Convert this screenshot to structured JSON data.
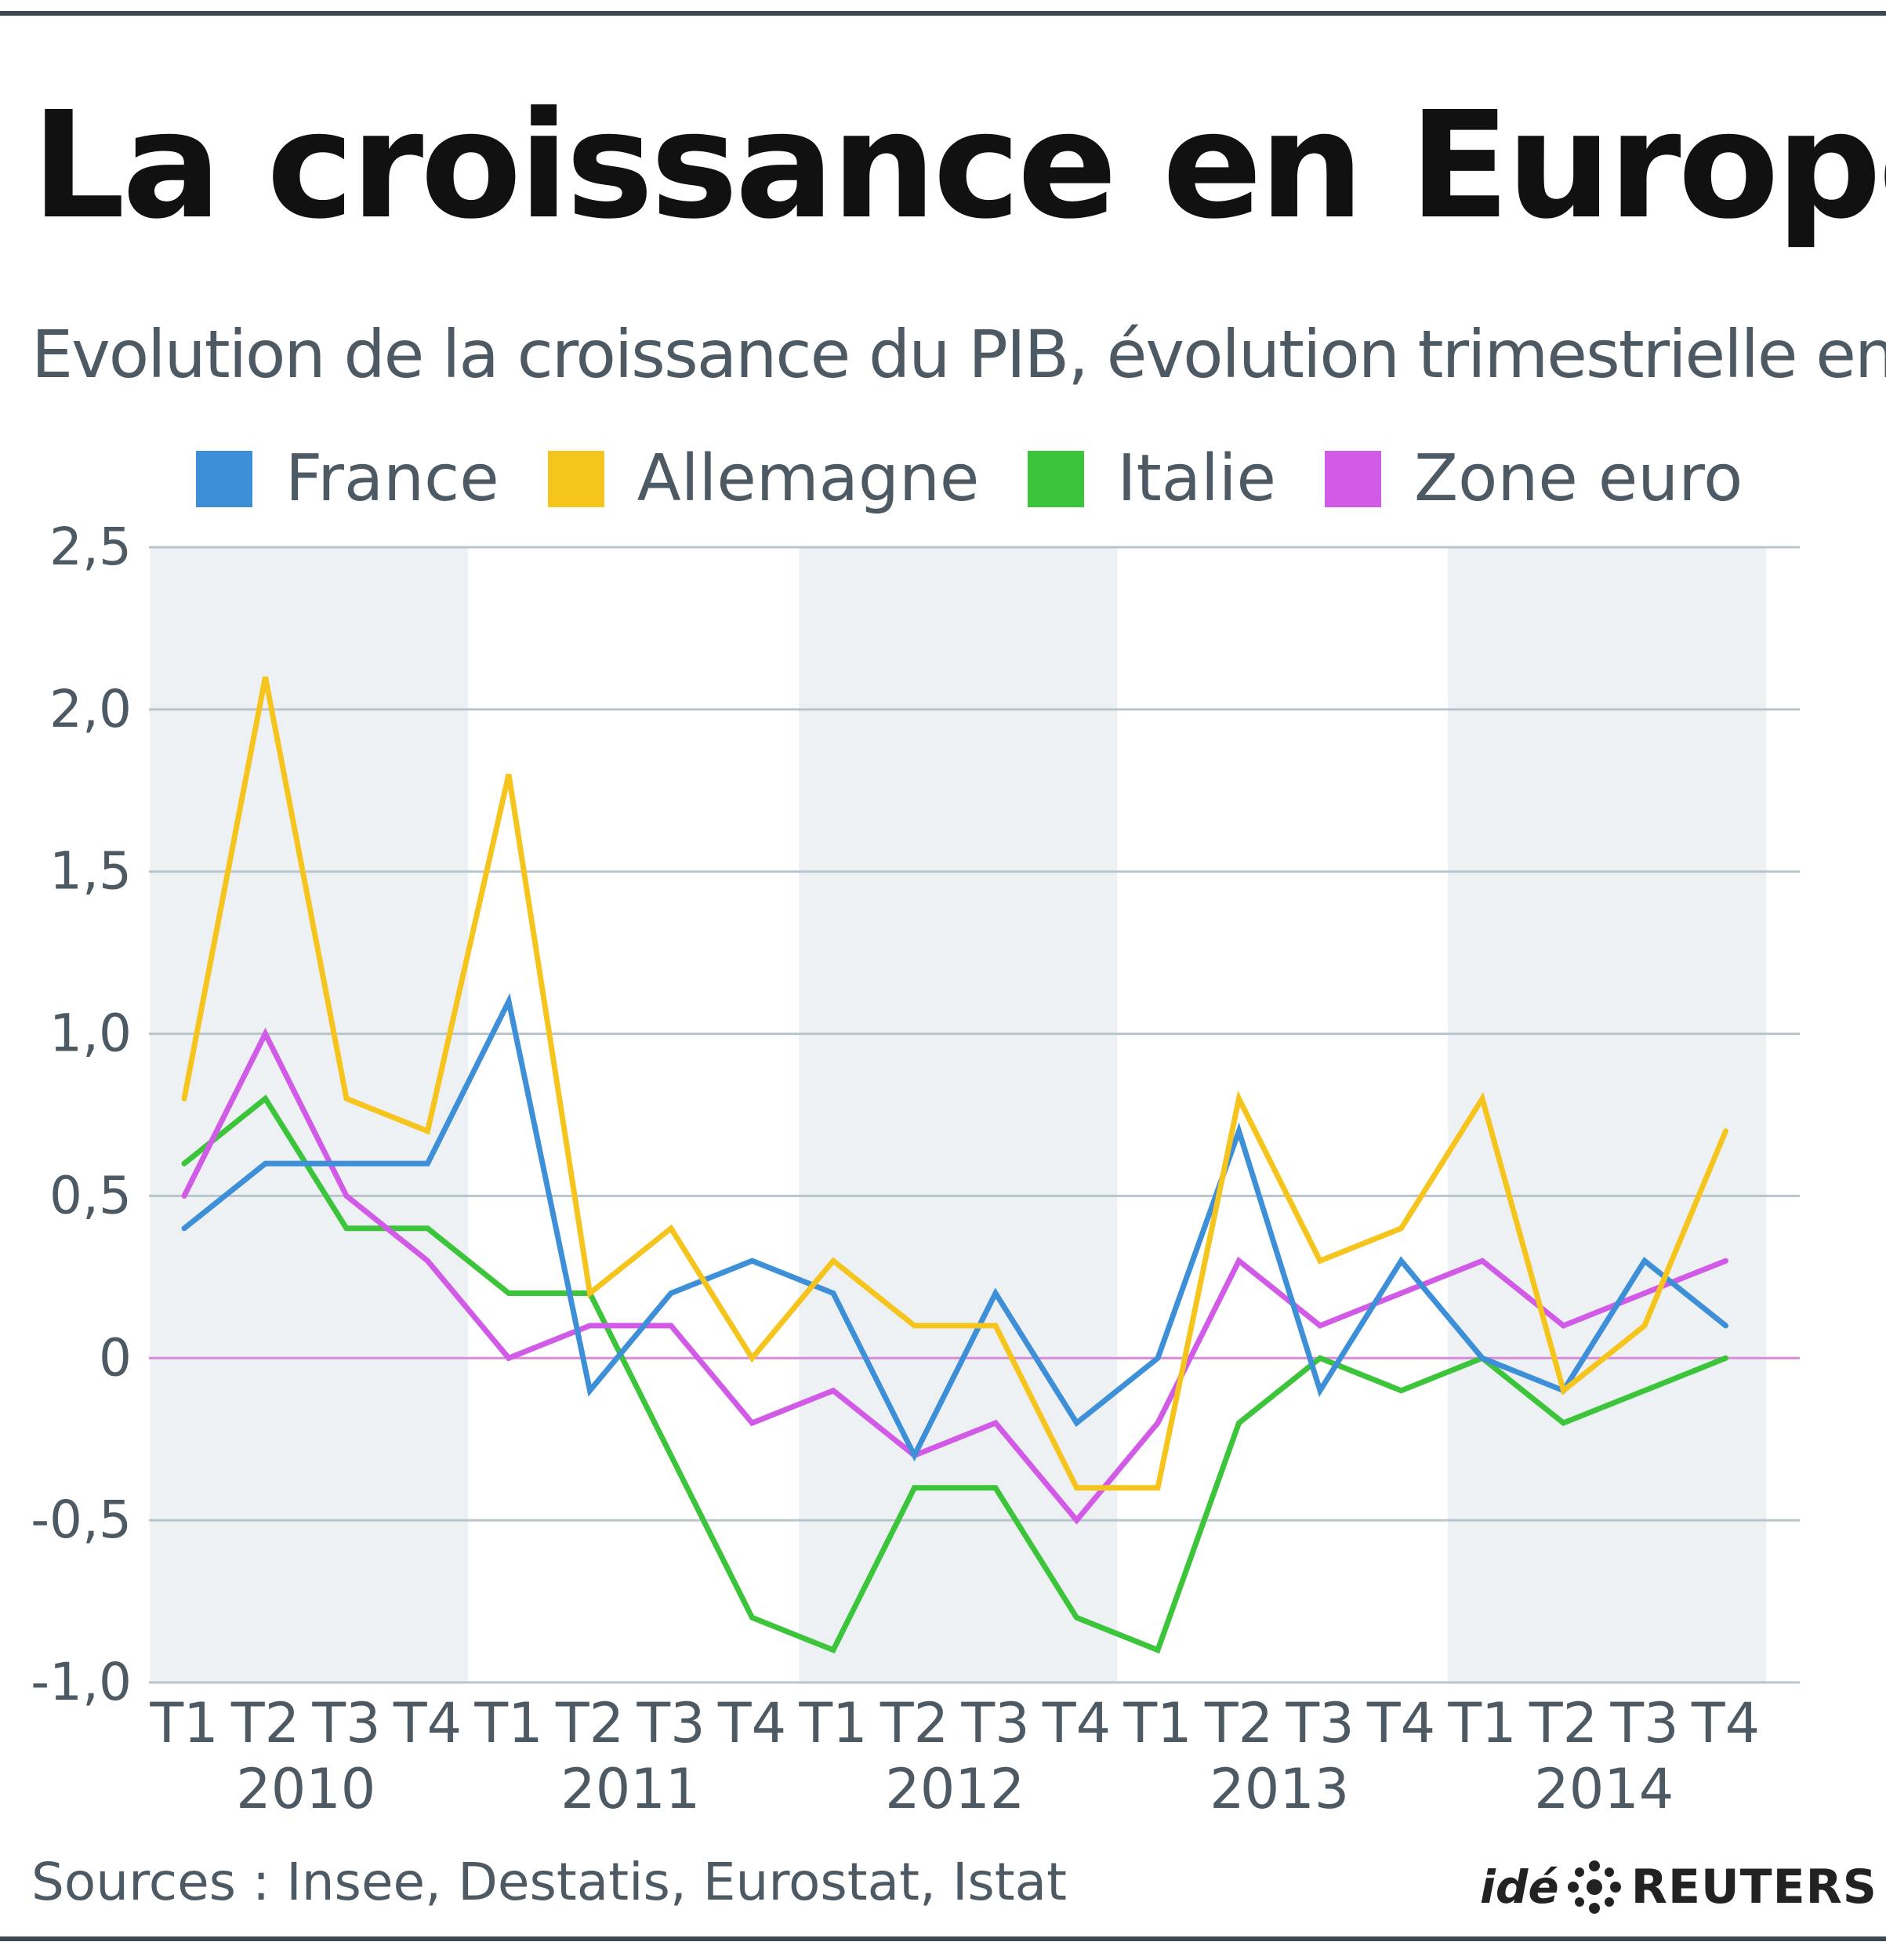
{
  "chart_data": {
    "type": "line",
    "title": "La croissance en Europe",
    "subtitle": "Evolution de la croissance du PIB, évolution trimestrielle en %",
    "categories": [
      "T1",
      "T2",
      "T3",
      "T4",
      "T1",
      "T2",
      "T3",
      "T4",
      "T1",
      "T2",
      "T3",
      "T4",
      "T1",
      "T2",
      "T3",
      "T4",
      "T1",
      "T2",
      "T3",
      "T4"
    ],
    "years": [
      "2010",
      "2011",
      "2012",
      "2013",
      "2014"
    ],
    "ylim": [
      -1.0,
      2.5
    ],
    "yticks": [
      2.5,
      2.0,
      1.5,
      1.0,
      0.5,
      0,
      -0.5,
      -1.0
    ],
    "ytick_labels": [
      "2,5",
      "2,0",
      "1,5",
      "1,0",
      "0,5",
      "0",
      "-0,5",
      "-1,0"
    ],
    "series": [
      {
        "name": "France",
        "color": "#3d8fd8",
        "values": [
          0.4,
          0.6,
          0.6,
          0.6,
          1.1,
          -0.1,
          0.2,
          0.3,
          0.2,
          -0.3,
          0.2,
          -0.2,
          0.0,
          0.7,
          -0.1,
          0.3,
          0.0,
          -0.1,
          0.3,
          0.1
        ]
      },
      {
        "name": "Allemagne",
        "color": "#f5c51e",
        "values": [
          0.8,
          2.1,
          0.8,
          0.7,
          1.8,
          0.2,
          0.4,
          0.0,
          0.3,
          0.1,
          0.1,
          -0.4,
          -0.4,
          0.8,
          0.3,
          0.4,
          0.8,
          -0.1,
          0.1,
          0.7
        ]
      },
      {
        "name": "Italie",
        "color": "#3cc43a",
        "values": [
          0.6,
          0.8,
          0.4,
          0.4,
          0.2,
          0.2,
          -0.3,
          -0.8,
          -0.9,
          -0.4,
          -0.4,
          -0.8,
          -0.9,
          -0.2,
          0.0,
          -0.1,
          0.0,
          -0.2,
          -0.1,
          0.0
        ]
      },
      {
        "name": "Zone euro",
        "color": "#d15be6",
        "values": [
          0.5,
          1.0,
          0.5,
          0.3,
          0.0,
          0.1,
          0.1,
          -0.2,
          -0.1,
          -0.3,
          -0.2,
          -0.5,
          -0.2,
          0.3,
          0.1,
          0.2,
          0.3,
          0.1,
          0.2,
          0.3
        ]
      }
    ],
    "legend_position": "top",
    "grid": true
  },
  "footer": {
    "source": "Sources : Insee, Destatis, Eurostat, Istat",
    "brand_prefix": "idé",
    "brand_name": "REUTERS"
  }
}
